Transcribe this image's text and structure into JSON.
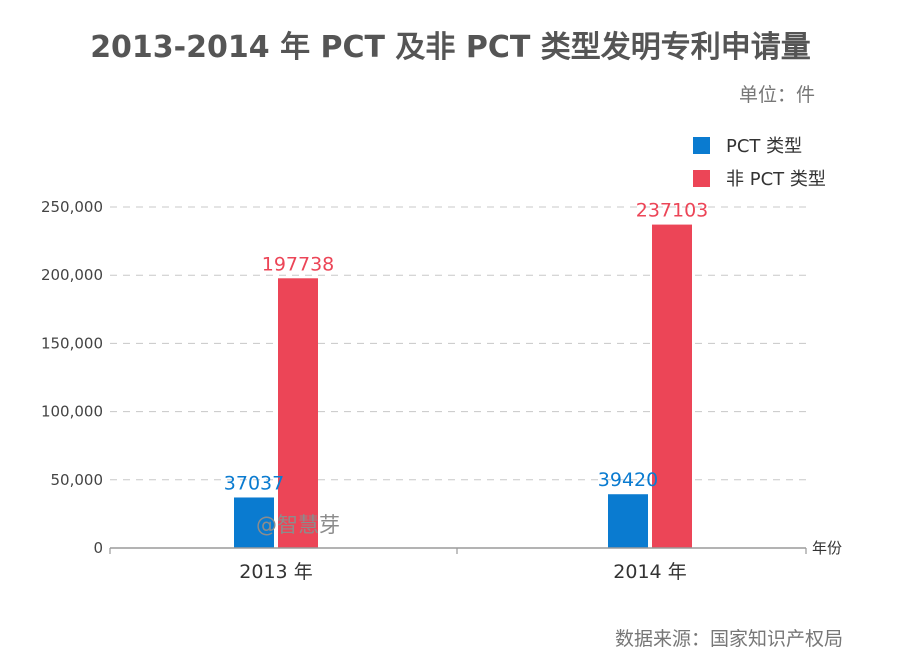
{
  "title": "2013-2014 年 PCT 及非 PCT 类型发明专利申请量",
  "unit": "单位：件",
  "source": "数据来源：国家知识产权局",
  "watermark": "@智慧芽",
  "colors": {
    "pct": "#0a7bd0",
    "non_pct": "#ec4557",
    "grid": "#c8c8c8",
    "axis": "#9a9a9a"
  },
  "chart_data": {
    "type": "bar",
    "title": "2013-2014 年 PCT 及非 PCT 类型发明专利申请量",
    "xlabel": "年份",
    "ylabel": "",
    "unit": "单位：件",
    "categories": [
      "2013 年",
      "2014 年"
    ],
    "series": [
      {
        "name": "PCT 类型",
        "values": [
          37037,
          39420
        ]
      },
      {
        "name": "非 PCT 类型",
        "values": [
          197738,
          237103
        ]
      }
    ],
    "ylim": [
      0,
      250000
    ],
    "yticks": [
      0,
      50000,
      100000,
      150000,
      200000,
      250000
    ],
    "ytick_labels": [
      "0",
      "50,000",
      "100,000",
      "150,000",
      "200,000",
      "250,000"
    ],
    "data_labels": [
      [
        "37037",
        "39420"
      ],
      [
        "197738",
        "237103"
      ]
    ],
    "legend_position": "top-right",
    "grid": true
  }
}
